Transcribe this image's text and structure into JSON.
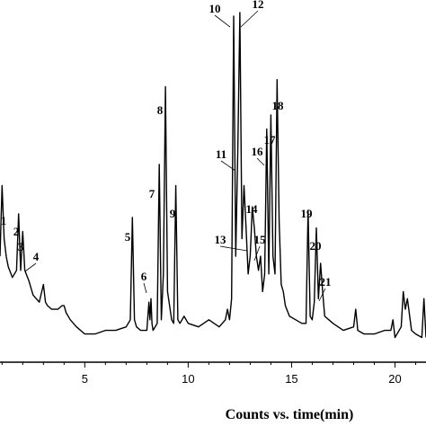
{
  "chart_data": {
    "type": "line",
    "title": "",
    "xlabel": "Counts vs. time(min)",
    "ylabel": "",
    "xlim": [
      0.9,
      21.5
    ],
    "ylim": [
      0,
      100
    ],
    "x_ticks": [
      5,
      10,
      15,
      20
    ],
    "grid": false,
    "legend": "none",
    "line_color": "#000000",
    "series": [
      {
        "x": [
          0.9,
          1.0,
          1.1,
          1.2,
          1.3,
          1.5,
          1.7,
          1.8,
          1.9,
          2.0,
          2.1,
          2.3,
          2.5,
          2.8,
          3.0,
          3.1,
          3.2,
          3.4,
          3.7,
          3.9,
          4.0,
          4.1,
          4.3,
          4.6,
          5.0,
          5.5,
          6.0,
          6.5,
          7.0,
          7.2,
          7.3,
          7.4,
          7.5,
          7.7,
          8.0,
          8.1,
          8.15,
          8.2,
          8.25,
          8.3,
          8.5,
          8.6,
          8.7,
          8.8,
          8.9,
          9.0,
          9.2,
          9.3,
          9.4,
          9.5,
          9.6,
          9.8,
          9.9,
          10.0,
          10.5,
          11.0,
          11.5,
          11.8,
          11.9,
          12.0,
          12.1,
          12.2,
          12.3,
          12.4,
          12.5,
          12.6,
          12.7,
          12.8,
          12.9,
          13.0,
          13.1,
          13.2,
          13.3,
          13.4,
          13.5,
          13.6,
          13.7,
          13.8,
          13.9,
          14.0,
          14.1,
          14.2,
          14.3,
          14.4,
          14.5,
          14.6,
          14.7,
          14.9,
          15.2,
          15.5,
          15.7,
          15.8,
          15.9,
          16.0,
          16.1,
          16.2,
          16.3,
          16.4,
          16.5,
          16.6,
          16.8,
          17.0,
          17.5,
          18.0,
          18.1,
          18.2,
          18.5,
          19.0,
          19.5,
          19.8,
          19.9,
          20.0,
          20.3,
          20.4,
          20.5,
          20.6,
          20.8,
          21.0,
          21.3,
          21.4,
          21.5
        ],
        "values": [
          30,
          50,
          35,
          30,
          27,
          24,
          26,
          42,
          26,
          37,
          26,
          23,
          19,
          17,
          22,
          17,
          16,
          15,
          15,
          16,
          16,
          14,
          12,
          10,
          8,
          8,
          9,
          9,
          10,
          12,
          41,
          12,
          10,
          9,
          9,
          17,
          12,
          18,
          11,
          9,
          11,
          56,
          12,
          25,
          78,
          20,
          12,
          11,
          50,
          12,
          11,
          13,
          12,
          11,
          10,
          12,
          10,
          12,
          15,
          12,
          18,
          98,
          30,
          60,
          99,
          35,
          50,
          38,
          25,
          30,
          44,
          38,
          30,
          26,
          30,
          20,
          25,
          66,
          25,
          70,
          30,
          25,
          80,
          40,
          22,
          20,
          16,
          13,
          12,
          11,
          11,
          43,
          13,
          12,
          17,
          38,
          18,
          28,
          20,
          13,
          12,
          11,
          9,
          10,
          15,
          9,
          8,
          8,
          9,
          9,
          12,
          7,
          10,
          20,
          15,
          18,
          9,
          8,
          7,
          18,
          7
        ]
      }
    ],
    "peak_labels": [
      "1",
      "2",
      "3",
      "4",
      "5",
      "6",
      "7",
      "8",
      "9",
      "10",
      "11",
      "12",
      "13",
      "14",
      "15",
      "16",
      "17",
      "18",
      "19",
      "20",
      "21"
    ]
  }
}
